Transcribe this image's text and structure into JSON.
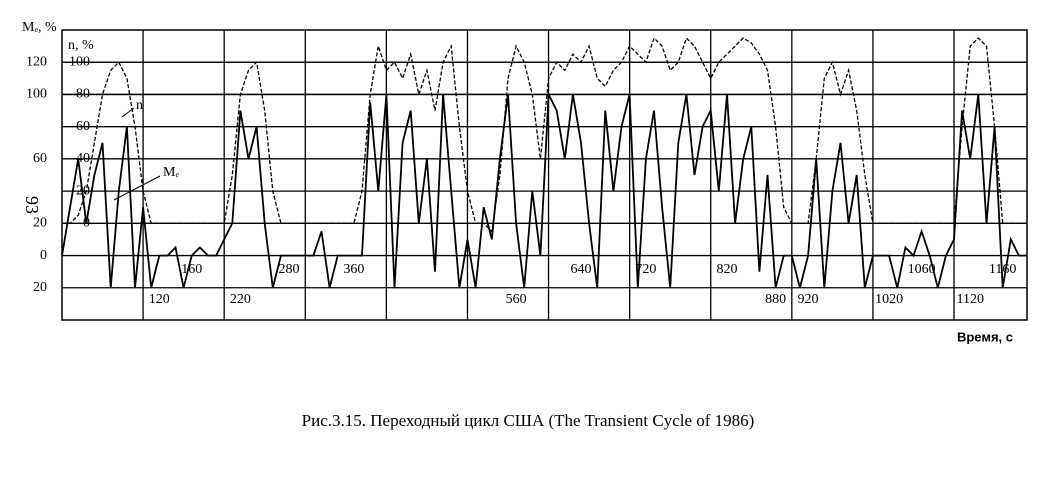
{
  "chart_data": {
    "type": "line",
    "y_axis_label": "Mₑ, %",
    "y2_axis_label": "n, %",
    "x_axis_label": "Время, с",
    "caption": "Рис.3.15. Переходный цикл США (The Transient Cycle of 1986)",
    "side_label": "93",
    "xlim": [
      0,
      1190
    ],
    "xgrid": [
      100,
      200,
      300,
      400,
      500,
      600,
      700,
      800,
      900,
      1000,
      1100
    ],
    "x_labels_upper": [
      160,
      280,
      360,
      640,
      720,
      820,
      1060,
      1160
    ],
    "x_labels_lower": [
      120,
      220,
      560,
      880,
      920,
      1020,
      1120
    ],
    "ylim": [
      -40,
      140
    ],
    "yticks": [
      120,
      100,
      60,
      20,
      0,
      {
        "value": -20,
        "label": "20"
      }
    ],
    "y2lim": [
      -60,
      120
    ],
    "y2ticks": [
      100,
      80,
      60,
      40,
      20,
      0
    ],
    "x": [
      0,
      10,
      20,
      30,
      40,
      50,
      60,
      70,
      80,
      90,
      100,
      110,
      120,
      130,
      140,
      150,
      160,
      170,
      180,
      190,
      200,
      210,
      220,
      230,
      240,
      250,
      260,
      270,
      280,
      290,
      300,
      310,
      320,
      330,
      340,
      350,
      360,
      370,
      380,
      390,
      400,
      410,
      420,
      430,
      440,
      450,
      460,
      470,
      480,
      490,
      500,
      510,
      520,
      530,
      540,
      550,
      560,
      570,
      580,
      590,
      600,
      610,
      620,
      630,
      640,
      650,
      660,
      670,
      680,
      690,
      700,
      710,
      720,
      730,
      740,
      750,
      760,
      770,
      780,
      790,
      800,
      810,
      820,
      830,
      840,
      850,
      860,
      870,
      880,
      890,
      900,
      910,
      920,
      930,
      940,
      950,
      960,
      970,
      980,
      990,
      1000,
      1010,
      1020,
      1030,
      1040,
      1050,
      1060,
      1070,
      1080,
      1090,
      1100,
      1110,
      1120,
      1130,
      1140,
      1150,
      1160,
      1170,
      1180,
      1190
    ],
    "series": [
      {
        "name": "n",
        "color": "#000000",
        "style": "dashed",
        "axis": "y2",
        "values": [
          0,
          0,
          5,
          20,
          50,
          80,
          95,
          100,
          90,
          60,
          20,
          0,
          0,
          0,
          0,
          0,
          0,
          0,
          0,
          0,
          0,
          30,
          80,
          95,
          100,
          70,
          20,
          0,
          0,
          0,
          0,
          0,
          0,
          0,
          0,
          0,
          0,
          20,
          80,
          110,
          95,
          100,
          90,
          105,
          80,
          95,
          70,
          100,
          110,
          60,
          20,
          0,
          0,
          -5,
          30,
          90,
          110,
          100,
          80,
          40,
          90,
          100,
          95,
          105,
          100,
          110,
          90,
          85,
          95,
          100,
          110,
          105,
          100,
          115,
          110,
          95,
          100,
          115,
          110,
          100,
          90,
          100,
          105,
          110,
          115,
          112,
          105,
          95,
          60,
          10,
          0,
          0,
          0,
          40,
          90,
          100,
          80,
          95,
          70,
          30,
          0,
          0,
          0,
          0,
          0,
          0,
          0,
          0,
          0,
          0,
          0,
          60,
          110,
          115,
          110,
          60,
          0,
          0,
          0,
          0
        ]
      },
      {
        "name": "Mₑ",
        "color": "#000000",
        "style": "solid",
        "values": [
          0,
          30,
          60,
          20,
          50,
          70,
          -20,
          40,
          80,
          -20,
          30,
          -20,
          0,
          0,
          5,
          -20,
          0,
          5,
          0,
          0,
          10,
          20,
          90,
          60,
          80,
          20,
          -20,
          0,
          0,
          0,
          0,
          0,
          15,
          -20,
          0,
          0,
          0,
          0,
          95,
          40,
          100,
          -20,
          70,
          90,
          20,
          60,
          -10,
          100,
          40,
          -20,
          10,
          -20,
          30,
          10,
          60,
          100,
          20,
          -20,
          40,
          0,
          100,
          90,
          60,
          100,
          70,
          20,
          -20,
          90,
          40,
          80,
          100,
          -20,
          60,
          90,
          30,
          -20,
          70,
          100,
          50,
          80,
          90,
          40,
          100,
          20,
          60,
          80,
          -10,
          50,
          -20,
          0,
          0,
          -20,
          0,
          60,
          -20,
          40,
          70,
          20,
          50,
          -20,
          0,
          0,
          0,
          -20,
          5,
          0,
          15,
          0,
          -20,
          0,
          10,
          90,
          60,
          100,
          20,
          80,
          -20,
          10,
          0,
          0
        ]
      }
    ]
  }
}
